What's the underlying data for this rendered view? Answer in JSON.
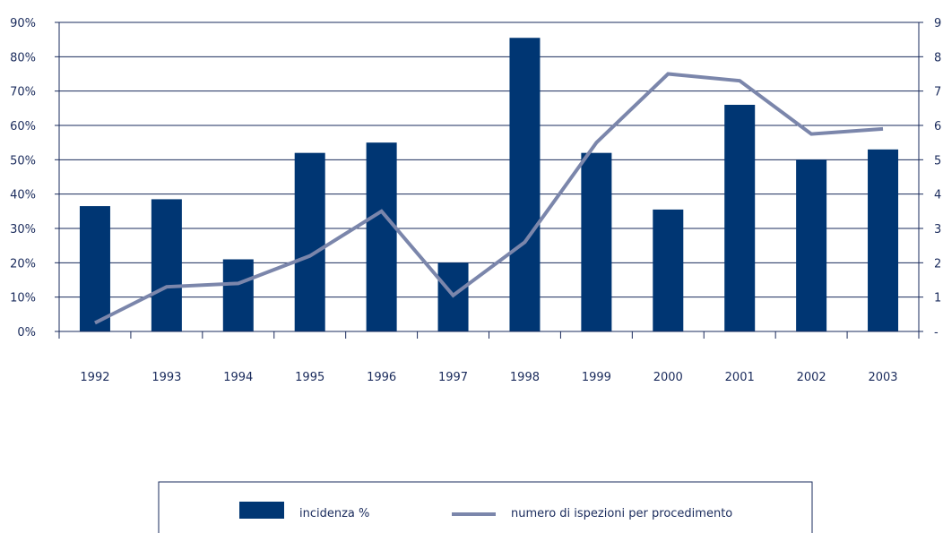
{
  "chart_data": {
    "type": "bar",
    "categories": [
      "1992",
      "1993",
      "1994",
      "1995",
      "1996",
      "1997",
      "1998",
      "1999",
      "2000",
      "2001",
      "2002",
      "2003"
    ],
    "series": [
      {
        "name": "incidenza %",
        "type": "bar",
        "axis": "left",
        "values": [
          36.5,
          38.5,
          21,
          52,
          55,
          20,
          85.5,
          52,
          35.5,
          66,
          50,
          53
        ]
      },
      {
        "name": "numero di ispezioni per procedimento",
        "type": "line",
        "axis": "right",
        "values": [
          0.25,
          1.3,
          1.4,
          2.2,
          3.5,
          1.05,
          2.6,
          5.5,
          7.5,
          7.3,
          5.75,
          5.9
        ]
      }
    ],
    "y_left": {
      "ylim": [
        0,
        90
      ],
      "ticks": [
        "0%",
        "10%",
        "20%",
        "30%",
        "40%",
        "50%",
        "60%",
        "70%",
        "80%",
        "90%"
      ]
    },
    "y_right": {
      "ylim": [
        0,
        9
      ],
      "ticks": [
        "-",
        "1",
        "2",
        "3",
        "4",
        "5",
        "6",
        "7",
        "8",
        "9"
      ]
    },
    "grid": true,
    "legend": "bottom",
    "colors": {
      "bar": "#003673",
      "line": "#7b86ab",
      "axis": "#1a2b5c",
      "grid": "#1a2b5c"
    }
  }
}
